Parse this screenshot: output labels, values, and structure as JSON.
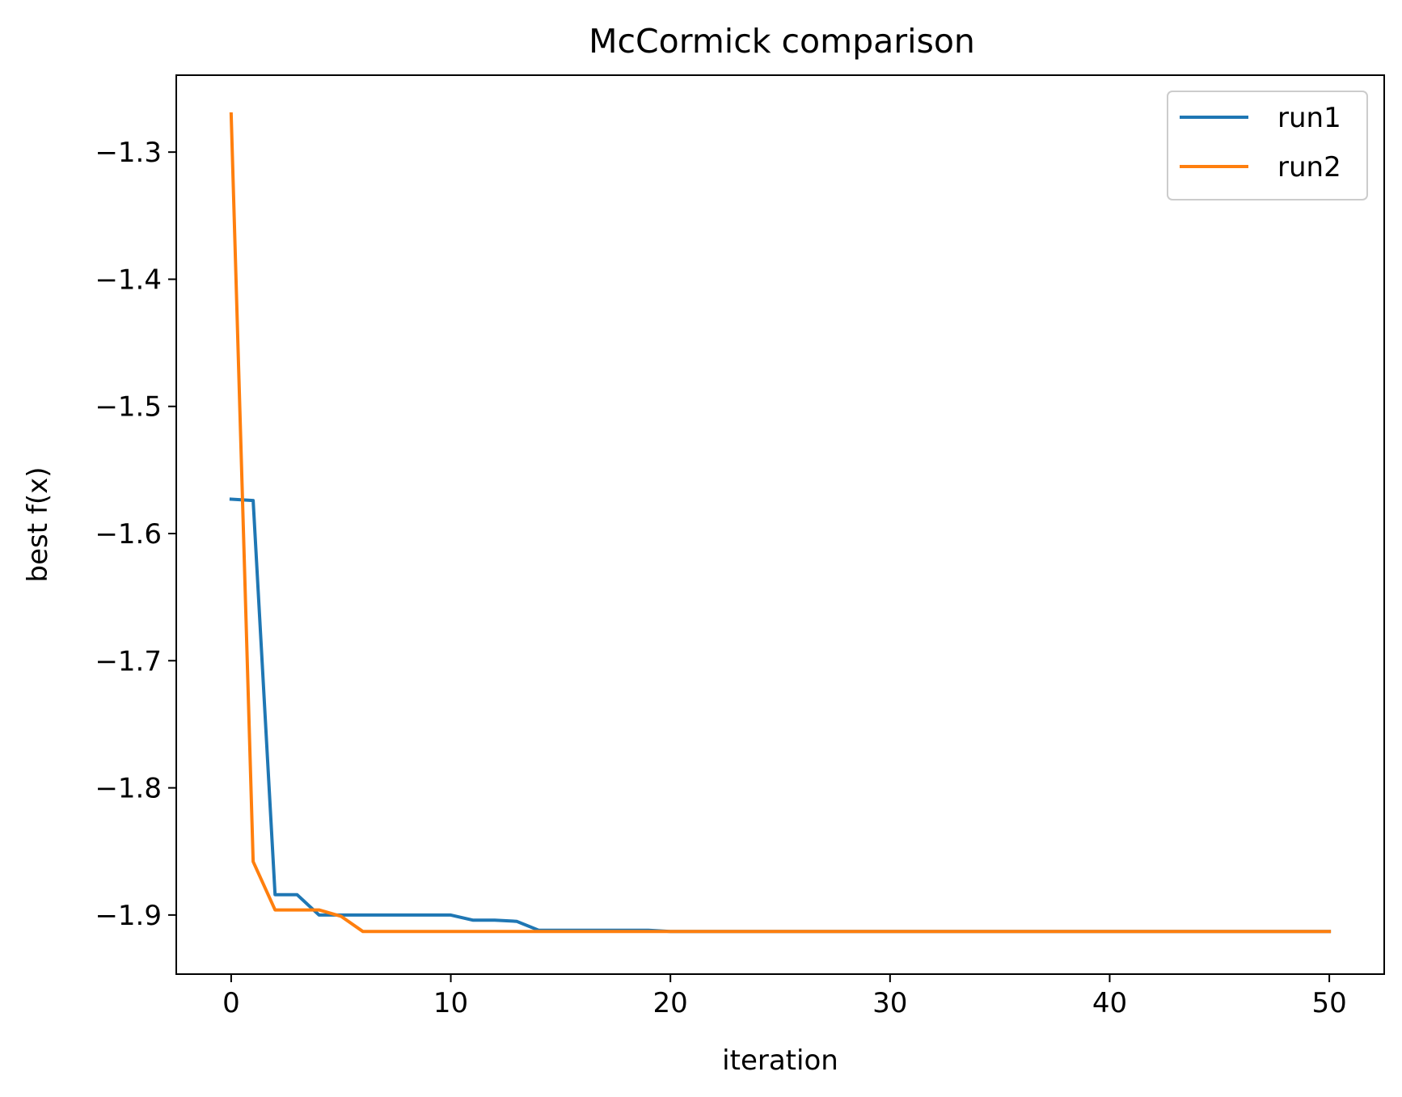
{
  "chart_data": {
    "type": "line",
    "title": "McCormick comparison",
    "xlabel": "iteration",
    "ylabel": "best f(x)",
    "xlim": [
      -2.5,
      52.5
    ],
    "ylim": [
      -1.9465,
      -1.2395
    ],
    "xticks": [
      0,
      10,
      20,
      30,
      40,
      50
    ],
    "xtick_labels": [
      "0",
      "10",
      "20",
      "30",
      "40",
      "50"
    ],
    "yticks": [
      -1.9,
      -1.8,
      -1.7,
      -1.6,
      -1.5,
      -1.4,
      -1.3
    ],
    "ytick_labels": [
      "−1.9",
      "−1.8",
      "−1.7",
      "−1.6",
      "−1.5",
      "−1.4",
      "−1.3"
    ],
    "grid": false,
    "legend_position": "top-right",
    "x": [
      0,
      1,
      2,
      3,
      4,
      5,
      6,
      7,
      8,
      9,
      10,
      11,
      12,
      13,
      14,
      15,
      16,
      17,
      18,
      19,
      20,
      21,
      22,
      23,
      24,
      25,
      26,
      27,
      28,
      29,
      30,
      31,
      32,
      33,
      34,
      35,
      36,
      37,
      38,
      39,
      40,
      41,
      42,
      43,
      44,
      45,
      46,
      47,
      48,
      49,
      50
    ],
    "series": [
      {
        "name": "run1",
        "color": "#1f77b4",
        "values": [
          -1.573,
          -1.574,
          -1.884,
          -1.884,
          -1.9,
          -1.9,
          -1.9,
          -1.9,
          -1.9,
          -1.9,
          -1.9,
          -1.904,
          -1.904,
          -1.905,
          -1.912,
          -1.912,
          -1.912,
          -1.912,
          -1.912,
          -1.912,
          -1.913,
          -1.913,
          -1.913,
          -1.913,
          -1.913,
          -1.913,
          -1.913,
          -1.913,
          -1.913,
          -1.913,
          -1.913,
          -1.913,
          -1.913,
          -1.913,
          -1.913,
          -1.913,
          -1.913,
          -1.913,
          -1.913,
          -1.913,
          -1.913,
          -1.913,
          -1.913,
          -1.913,
          -1.913,
          -1.913,
          -1.913,
          -1.913,
          -1.913,
          -1.913,
          -1.913
        ]
      },
      {
        "name": "run2",
        "color": "#ff7f0e",
        "values": [
          -1.27,
          -1.858,
          -1.896,
          -1.896,
          -1.896,
          -1.901,
          -1.913,
          -1.913,
          -1.913,
          -1.913,
          -1.913,
          -1.913,
          -1.913,
          -1.913,
          -1.913,
          -1.913,
          -1.913,
          -1.913,
          -1.913,
          -1.913,
          -1.913,
          -1.913,
          -1.913,
          -1.913,
          -1.913,
          -1.913,
          -1.913,
          -1.913,
          -1.913,
          -1.913,
          -1.913,
          -1.913,
          -1.913,
          -1.913,
          -1.913,
          -1.913,
          -1.913,
          -1.913,
          -1.913,
          -1.913,
          -1.913,
          -1.913,
          -1.913,
          -1.913,
          -1.913,
          -1.913,
          -1.913,
          -1.913,
          -1.913,
          -1.913,
          -1.913
        ]
      }
    ]
  }
}
